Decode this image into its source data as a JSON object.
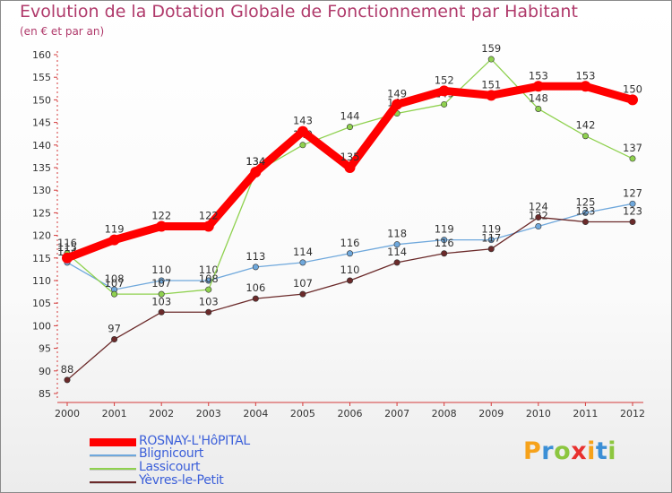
{
  "chart_data": {
    "type": "line",
    "title": "Evolution de la Dotation Globale de Fonctionnement par Habitant",
    "subtitle": "(en € et par an)",
    "xlabel": "",
    "ylabel": "",
    "x": [
      "2000",
      "2001",
      "2002",
      "2003",
      "2004",
      "2005",
      "2006",
      "2007",
      "2008",
      "2009",
      "2010",
      "2011",
      "2012"
    ],
    "ylim": [
      85,
      160
    ],
    "yticks": [
      85,
      90,
      95,
      100,
      105,
      110,
      115,
      120,
      125,
      130,
      135,
      140,
      145,
      150,
      155,
      160
    ],
    "grid": false,
    "legend_position": "bottom-left",
    "series": [
      {
        "name": "ROSNAY-L'HôPITAL",
        "color": "#ff0000",
        "style": "thick",
        "values": [
          115,
          119,
          122,
          122,
          134,
          143,
          135,
          149,
          152,
          151,
          153,
          153,
          150
        ]
      },
      {
        "name": "Blignicourt",
        "color": "#6fa8dc",
        "style": "thin",
        "values": [
          114,
          108,
          110,
          110,
          113,
          114,
          116,
          118,
          119,
          119,
          122,
          125,
          127
        ]
      },
      {
        "name": "Lassicourt",
        "color": "#8fd14f",
        "style": "thin",
        "values": [
          116,
          107,
          107,
          108,
          134,
          140,
          144,
          147,
          149,
          159,
          148,
          142,
          137
        ]
      },
      {
        "name": "Yèvres-le-Petit",
        "color": "#6b2a2a",
        "style": "thin",
        "values": [
          88,
          97,
          103,
          103,
          106,
          107,
          110,
          114,
          116,
          117,
          124,
          123,
          123
        ]
      }
    ]
  },
  "logo": {
    "text": "Proxiti",
    "letter_colors": [
      "#f6a21a",
      "#3b8fd6",
      "#8cc63f",
      "#e8312f",
      "#f6a21a",
      "#3b8fd6",
      "#8cc63f"
    ]
  }
}
